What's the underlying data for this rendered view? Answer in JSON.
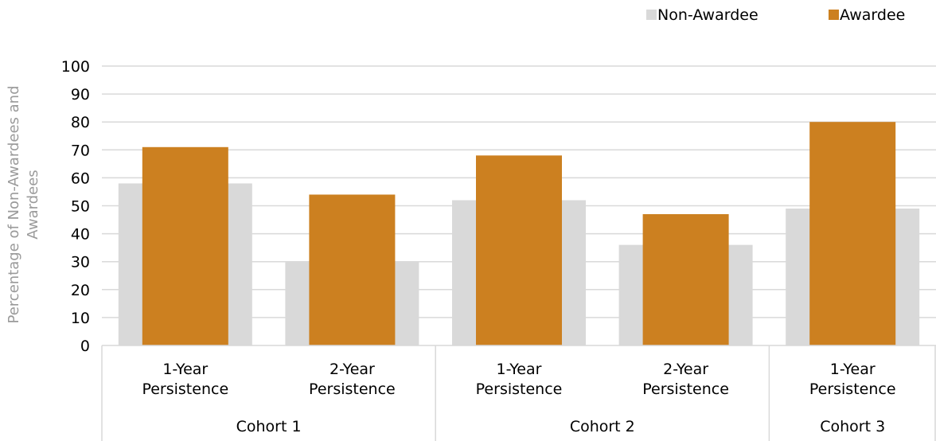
{
  "chart_data": {
    "type": "bar",
    "ylabel_lines": [
      "Percentage of Non-Awardees and",
      "Awardees"
    ],
    "ylim": [
      0,
      100
    ],
    "yticks": [
      "0",
      "10",
      "20",
      "30",
      "40",
      "50",
      "60",
      "70",
      "80",
      "90",
      "100"
    ],
    "grid": true,
    "legend_position": "top-right",
    "groups": [
      {
        "name": "Cohort 1",
        "categories": [
          [
            "1-Year",
            "Persistence"
          ],
          [
            "2-Year",
            "Persistence"
          ]
        ]
      },
      {
        "name": "Cohort 2",
        "categories": [
          [
            "1-Year",
            "Persistence"
          ],
          [
            "2-Year",
            "Persistence"
          ]
        ]
      },
      {
        "name": "Cohort 3",
        "categories": [
          [
            "1-Year",
            "Persistence"
          ]
        ]
      }
    ],
    "series": [
      {
        "name": "Non-Awardee",
        "color": "#d9d9d9",
        "values": [
          58,
          30,
          52,
          36,
          49
        ]
      },
      {
        "name": "Awardee",
        "color": "#cc8020",
        "values": [
          71,
          54,
          68,
          47,
          80
        ]
      }
    ]
  }
}
